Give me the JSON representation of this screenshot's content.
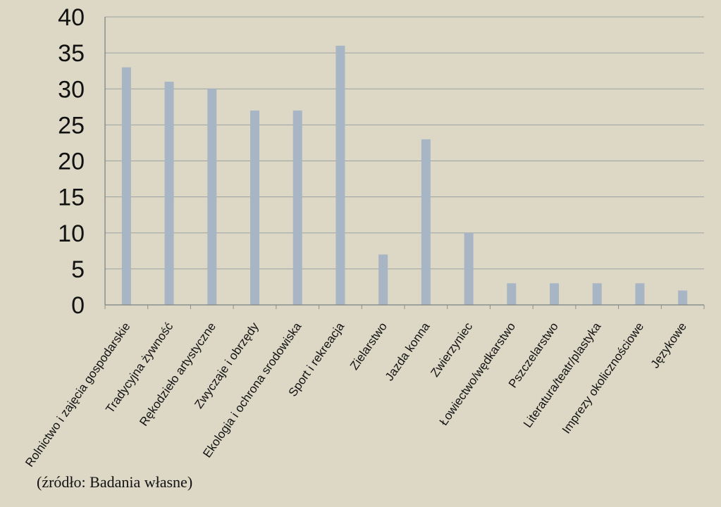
{
  "chart_data": {
    "type": "bar",
    "title": "",
    "xlabel": "",
    "ylabel": "",
    "ylim": [
      0,
      40
    ],
    "yticks": [
      0,
      5,
      10,
      15,
      20,
      25,
      30,
      35,
      40
    ],
    "grid": true,
    "categories": [
      "Rolnictwo i zajęcia gospodarskie",
      "Tradycyjna żywność",
      "Rękodzieło artystyczne",
      "Zwyczaje i obrzędy",
      "Ekologia i ochrona srodowiska",
      "Sport i rekreacja",
      "Zielarstwo",
      "Jazda konna",
      "Zwierzyniec",
      "Łowiectwo/wędkarstwo",
      "Pszczelarstwo",
      "Literatura/teatr/plastyka",
      "Imprezy okolicznościowe",
      "Językowe"
    ],
    "values": [
      33,
      31,
      30,
      27,
      27,
      36,
      7,
      23,
      10,
      3,
      3,
      3,
      3,
      2
    ],
    "colors": {
      "bar": "#a7b5c5",
      "background": "#ddd8c6",
      "grid": "#9aa2a0",
      "axis": "#8a8f8c"
    }
  },
  "source_note": "(źródło: Badania własne)"
}
